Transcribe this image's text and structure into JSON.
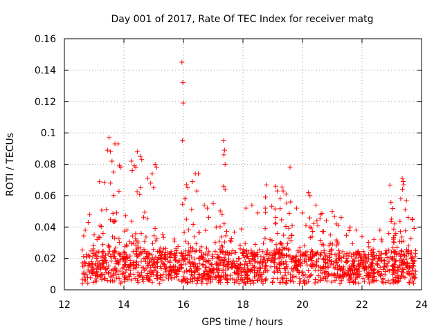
{
  "chart_data": {
    "type": "scatter",
    "title": "Day 001 of 2017, Rate Of TEC Index for receiver matg",
    "xlabel": "GPS time / hours",
    "ylabel": "ROTI / TECUs",
    "xlim": [
      12,
      24
    ],
    "ylim": [
      0,
      0.16
    ],
    "xticks": [
      12,
      14,
      16,
      18,
      20,
      22,
      24
    ],
    "xtick_labels": [
      "12",
      "14",
      "16",
      "18",
      "20",
      "22",
      "24"
    ],
    "yticks": [
      0,
      0.02,
      0.04,
      0.06,
      0.08,
      0.1,
      0.12,
      0.14,
      0.16
    ],
    "ytick_labels": [
      "0",
      "0.02",
      "0.04",
      "0.06",
      "0.08",
      "0.1",
      "0.12",
      "0.14",
      "0.16"
    ],
    "grid": true,
    "marker": "+",
    "color": "#ff0000",
    "data_range": {
      "x_start": 12.6,
      "x_end": 23.8,
      "baseline_min": 0.004,
      "baseline_max": 0.025
    },
    "series": [
      {
        "name": "ROTI",
        "points": [
          [
            15.95,
            0.145
          ],
          [
            15.98,
            0.132
          ],
          [
            15.99,
            0.119
          ],
          [
            15.97,
            0.095
          ],
          [
            13.5,
            0.097
          ],
          [
            13.45,
            0.089
          ],
          [
            13.55,
            0.088
          ],
          [
            13.8,
            0.093
          ],
          [
            13.7,
            0.093
          ],
          [
            13.6,
            0.082
          ],
          [
            13.85,
            0.079
          ],
          [
            13.9,
            0.078
          ],
          [
            13.65,
            0.075
          ],
          [
            13.55,
            0.068
          ],
          [
            14.25,
            0.082
          ],
          [
            14.35,
            0.079
          ],
          [
            14.28,
            0.076
          ],
          [
            14.45,
            0.088
          ],
          [
            14.55,
            0.085
          ],
          [
            14.6,
            0.083
          ],
          [
            14.4,
            0.078
          ],
          [
            15.05,
            0.08
          ],
          [
            15.1,
            0.078
          ],
          [
            14.95,
            0.074
          ],
          [
            14.8,
            0.071
          ],
          [
            14.9,
            0.068
          ],
          [
            15.0,
            0.065
          ],
          [
            16.1,
            0.067
          ],
          [
            16.15,
            0.065
          ],
          [
            16.4,
            0.074
          ],
          [
            16.5,
            0.074
          ],
          [
            16.3,
            0.069
          ],
          [
            16.45,
            0.063
          ],
          [
            16.05,
            0.058
          ],
          [
            16.7,
            0.054
          ],
          [
            16.8,
            0.052
          ],
          [
            17.0,
            0.055
          ],
          [
            17.35,
            0.095
          ],
          [
            17.38,
            0.089
          ],
          [
            17.36,
            0.086
          ],
          [
            17.4,
            0.08
          ],
          [
            17.35,
            0.066
          ],
          [
            17.4,
            0.064
          ],
          [
            17.3,
            0.048
          ],
          [
            18.1,
            0.052
          ],
          [
            18.3,
            0.054
          ],
          [
            18.5,
            0.049
          ],
          [
            18.75,
            0.052
          ],
          [
            19.1,
            0.066
          ],
          [
            19.15,
            0.063
          ],
          [
            19.35,
            0.063
          ],
          [
            19.45,
            0.061
          ],
          [
            19.25,
            0.058
          ],
          [
            19.6,
            0.056
          ],
          [
            19.8,
            0.052
          ],
          [
            20.0,
            0.049
          ],
          [
            20.2,
            0.062
          ],
          [
            20.25,
            0.06
          ],
          [
            20.45,
            0.054
          ],
          [
            20.6,
            0.048
          ],
          [
            20.8,
            0.044
          ],
          [
            21.0,
            0.05
          ],
          [
            21.3,
            0.046
          ],
          [
            21.6,
            0.04
          ],
          [
            21.8,
            0.038
          ],
          [
            22.0,
            0.034
          ],
          [
            22.4,
            0.032
          ],
          [
            22.6,
            0.038
          ],
          [
            22.9,
            0.036
          ],
          [
            23.1,
            0.042
          ],
          [
            23.35,
            0.071
          ],
          [
            23.38,
            0.069
          ],
          [
            23.4,
            0.067
          ],
          [
            23.36,
            0.064
          ],
          [
            23.3,
            0.058
          ],
          [
            23.45,
            0.051
          ],
          [
            23.55,
            0.046
          ],
          [
            23.7,
            0.045
          ],
          [
            23.75,
            0.039
          ],
          [
            12.7,
            0.038
          ],
          [
            12.8,
            0.043
          ],
          [
            12.85,
            0.048
          ],
          [
            13.0,
            0.035
          ],
          [
            13.2,
            0.041
          ],
          [
            13.3,
            0.036
          ],
          [
            16.85,
            0.046
          ],
          [
            17.1,
            0.04
          ]
        ]
      }
    ]
  }
}
